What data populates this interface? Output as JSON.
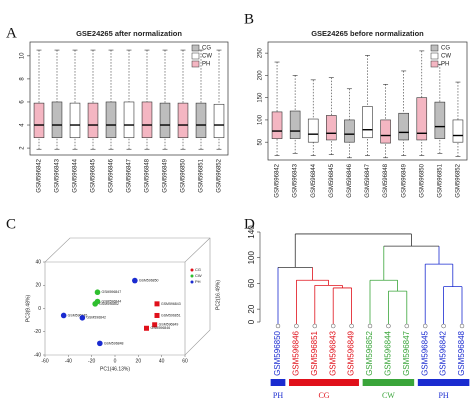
{
  "chart_data": [
    {
      "type": "box",
      "panel_label": "A",
      "title": "GSE24265  after normalization",
      "categories": [
        "GSM596842",
        "GSM596843",
        "GSM596844",
        "GSM596845",
        "GSM596846",
        "GSM596847",
        "GSM596848",
        "GSM596849",
        "GSM596850",
        "GSM596851",
        "GSM596852"
      ],
      "box_colors": [
        "#f4b6c2",
        "#bdbdbd",
        "#ffffff",
        "#f4b6c2",
        "#bdbdbd",
        "#ffffff",
        "#f4b6c2",
        "#bdbdbd",
        "#f4b6c2",
        "#bdbdbd",
        "#ffffff"
      ],
      "boxes": [
        {
          "min": 1.9,
          "q1": 2.9,
          "median": 4.0,
          "q3": 5.9,
          "max": 10.5
        },
        {
          "min": 1.9,
          "q1": 2.9,
          "median": 4.0,
          "q3": 6.0,
          "max": 10.5
        },
        {
          "min": 1.9,
          "q1": 2.9,
          "median": 4.0,
          "q3": 5.9,
          "max": 10.5
        },
        {
          "min": 1.9,
          "q1": 2.9,
          "median": 4.0,
          "q3": 5.9,
          "max": 10.5
        },
        {
          "min": 1.9,
          "q1": 2.9,
          "median": 4.0,
          "q3": 6.0,
          "max": 10.5
        },
        {
          "min": 1.9,
          "q1": 2.9,
          "median": 4.0,
          "q3": 6.0,
          "max": 10.5
        },
        {
          "min": 1.9,
          "q1": 2.9,
          "median": 4.0,
          "q3": 6.0,
          "max": 10.5
        },
        {
          "min": 1.9,
          "q1": 2.9,
          "median": 4.0,
          "q3": 5.9,
          "max": 10.5
        },
        {
          "min": 1.9,
          "q1": 2.9,
          "median": 4.0,
          "q3": 5.9,
          "max": 10.5
        },
        {
          "min": 1.9,
          "q1": 2.9,
          "median": 4.0,
          "q3": 5.9,
          "max": 10.5
        },
        {
          "min": 1.9,
          "q1": 2.9,
          "median": 4.0,
          "q3": 5.8,
          "max": 10.5
        }
      ],
      "ylim": [
        1.4,
        11.2
      ],
      "yticks": [
        2,
        4,
        6,
        8,
        10
      ],
      "legend": [
        {
          "name": "CG",
          "color": "#bdbdbd"
        },
        {
          "name": "CW",
          "color": "#ffffff"
        },
        {
          "name": "PH",
          "color": "#f4b6c2"
        }
      ]
    },
    {
      "type": "box",
      "panel_label": "B",
      "title": "GSE24265 before normalization",
      "categories": [
        "GSM596842",
        "GSM596843",
        "GSM596844",
        "GSM596845",
        "GSM596846",
        "GSM596847",
        "GSM596848",
        "GSM596849",
        "GSM596850",
        "GSM596851",
        "GSM596852"
      ],
      "box_colors": [
        "#f4b6c2",
        "#bdbdbd",
        "#ffffff",
        "#f4b6c2",
        "#bdbdbd",
        "#ffffff",
        "#f4b6c2",
        "#bdbdbd",
        "#f4b6c2",
        "#bdbdbd",
        "#ffffff"
      ],
      "boxes": [
        {
          "min": 20,
          "q1": 58,
          "median": 75,
          "q3": 118,
          "max": 230
        },
        {
          "min": 25,
          "q1": 58,
          "median": 75,
          "q3": 120,
          "max": 200
        },
        {
          "min": 20,
          "q1": 50,
          "median": 68,
          "q3": 102,
          "max": 190
        },
        {
          "min": 22,
          "q1": 55,
          "median": 70,
          "q3": 110,
          "max": 195
        },
        {
          "min": 15,
          "q1": 50,
          "median": 68,
          "q3": 100,
          "max": 170
        },
        {
          "min": 20,
          "q1": 60,
          "median": 78,
          "q3": 130,
          "max": 245
        },
        {
          "min": 15,
          "q1": 48,
          "median": 65,
          "q3": 100,
          "max": 180
        },
        {
          "min": 20,
          "q1": 55,
          "median": 72,
          "q3": 115,
          "max": 210
        },
        {
          "min": 20,
          "q1": 55,
          "median": 70,
          "q3": 150,
          "max": 255
        },
        {
          "min": 25,
          "q1": 58,
          "median": 85,
          "q3": 140,
          "max": 225
        },
        {
          "min": 18,
          "q1": 50,
          "median": 65,
          "q3": 100,
          "max": 185
        }
      ],
      "ylim": [
        10,
        275
      ],
      "yticks": [
        50,
        100,
        150,
        200,
        250
      ],
      "legend": [
        {
          "name": "CG",
          "color": "#bdbdbd"
        },
        {
          "name": "CW",
          "color": "#ffffff"
        },
        {
          "name": "PH",
          "color": "#f4b6c2"
        }
      ]
    },
    {
      "type": "scatter",
      "panel_label": "C",
      "xlabel": "PC1(46.13%)",
      "ylabel": "PC3(9.48%)",
      "zlabel": "PC2(16.49%)",
      "xlim": [
        -60,
        60
      ],
      "ylim": [
        -40,
        40
      ],
      "xticks": [
        -60,
        -40,
        -20,
        0,
        20,
        40,
        60
      ],
      "yticks": [
        -40,
        -20,
        0,
        20,
        40
      ],
      "series": [
        {
          "name": "CG",
          "color": "#e0101a",
          "x": [
            36,
            36,
            34,
            27
          ],
          "y": [
            4,
            -6,
            -14,
            -17
          ],
          "labels": [
            "GSM596843",
            "GSM596851",
            "GSM596849",
            "GSM596846"
          ]
        },
        {
          "name": "CW",
          "color": "#2fbf2f",
          "x": [
            -15,
            -15,
            -17
          ],
          "y": [
            14,
            6,
            4
          ],
          "labels": [
            "GSM596847",
            "GSM596844",
            "GSM596852"
          ]
        },
        {
          "name": "PH",
          "color": "#1a2bd0",
          "x": [
            17,
            -44,
            -28,
            -13
          ],
          "y": [
            24,
            -6,
            -8,
            -30
          ],
          "labels": [
            "GSM596850",
            "GSM596845",
            "GSM596842",
            "GSM596848"
          ]
        }
      ]
    },
    {
      "type": "dendrogram",
      "panel_label": "D",
      "leaves": [
        "GSM596850",
        "GSM596846",
        "GSM596851",
        "GSM596843",
        "GSM596849",
        "GSM596852",
        "GSM596844",
        "GSM596847",
        "GSM596845",
        "GSM596842",
        "GSM596848"
      ],
      "leaf_colors": [
        "#1a2bd0",
        "#e0101a",
        "#e0101a",
        "#e0101a",
        "#e0101a",
        "#3aa53a",
        "#3aa53a",
        "#3aa53a",
        "#1a2bd0",
        "#1a2bd0",
        "#1a2bd0"
      ],
      "merges": [
        {
          "children": [
            -4,
            -5
          ],
          "height": 53
        },
        {
          "children": [
            -3,
            1
          ],
          "height": 57
        },
        {
          "children": [
            -2,
            2
          ],
          "height": 65
        },
        {
          "children": [
            -1,
            3
          ],
          "height": 85
        },
        {
          "children": [
            -7,
            -8
          ],
          "height": 48
        },
        {
          "children": [
            -6,
            5
          ],
          "height": 65
        },
        {
          "children": [
            -10,
            -11
          ],
          "height": 55
        },
        {
          "children": [
            -9,
            7
          ],
          "height": 90
        },
        {
          "children": [
            6,
            8
          ],
          "height": 118
        },
        {
          "children": [
            4,
            9
          ],
          "height": 137
        }
      ],
      "ylim": [
        0,
        140
      ],
      "yticks": [
        0,
        20,
        60,
        100,
        140
      ],
      "groups": [
        {
          "label": "PH",
          "from": 0,
          "to": 0,
          "color": "#1a2bd0"
        },
        {
          "label": "CG",
          "from": 1,
          "to": 4,
          "color": "#e0101a"
        },
        {
          "label": "CW",
          "from": 5,
          "to": 7,
          "color": "#3aa53a"
        },
        {
          "label": "PH",
          "from": 8,
          "to": 10,
          "color": "#1a2bd0"
        }
      ]
    }
  ]
}
